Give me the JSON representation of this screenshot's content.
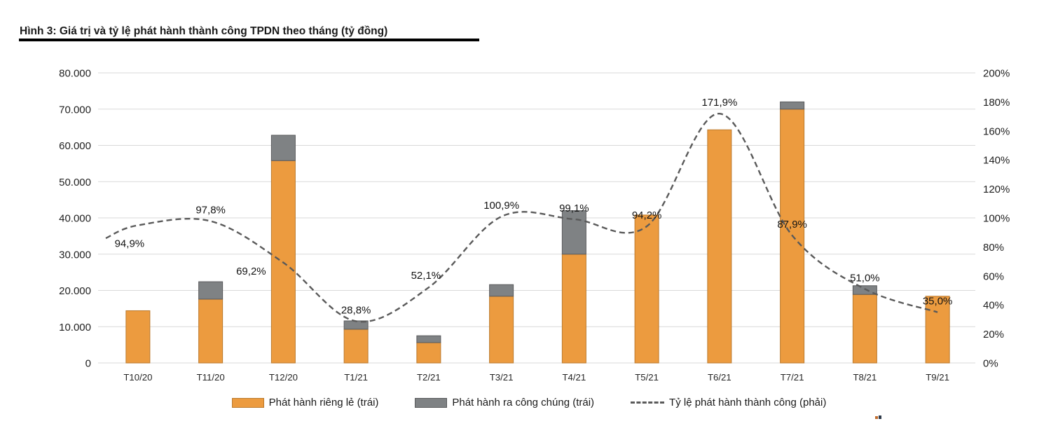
{
  "title": {
    "text": "Hình 3: Giá trị và tỷ lệ phát hành thành công TPDN theo tháng (tỷ đồng)"
  },
  "legend": {
    "items": [
      {
        "label": "Phát hành riêng lẻ (trái)",
        "swatch": "orange-bar"
      },
      {
        "label": "Phát hành ra công chúng (trái)",
        "swatch": "gray-bar"
      },
      {
        "label": "Tỷ lệ phát hành thành công (phải)",
        "swatch": "dashed-line"
      }
    ]
  },
  "colors": {
    "orange_fill": "#EC9B3F",
    "orange_border": "#BB7A2D",
    "gray_fill": "#7F8284",
    "gray_border": "#595A5C",
    "line": "#5A5A5A",
    "grid": "#D9D9D9",
    "axis_text": "#1F1F1F",
    "x_axis_text": "#262626",
    "point_label_text": "#141414",
    "title_rule": "#000000"
  },
  "chart_data": {
    "type": "combo",
    "title": "Hình 3: Giá trị và tỷ lệ phát hành thành công TPDN theo tháng (tỷ đồng)",
    "categories": [
      "T10/20",
      "T11/20",
      "T12/20",
      "T1/21",
      "T2/21",
      "T3/21",
      "T4/21",
      "T5/21",
      "T6/21",
      "T7/21",
      "T8/21",
      "T9/21"
    ],
    "series": [
      {
        "name": "Phát hành riêng lẻ (trái)",
        "type": "bar",
        "stacked": true,
        "axis": "left",
        "color_key": "orange",
        "values": [
          14400,
          17600,
          55800,
          9300,
          5600,
          18400,
          30000,
          40800,
          64300,
          70000,
          18900,
          18400
        ]
      },
      {
        "name": "Phát hành ra công chúng (trái)",
        "type": "bar",
        "stacked": true,
        "axis": "left",
        "color_key": "gray",
        "values": [
          0,
          4800,
          7000,
          2300,
          1900,
          3200,
          12000,
          0,
          0,
          2000,
          2400,
          0
        ]
      },
      {
        "name": "Tỷ lệ phát hành thành công (phải)",
        "type": "line",
        "style": "dashed-smooth",
        "axis": "right",
        "color_key": "line",
        "values": [
          94.9,
          97.8,
          69.2,
          28.8,
          52.1,
          100.9,
          99.1,
          94.2,
          171.9,
          87.9,
          51.0,
          35.0
        ],
        "point_labels": [
          "94,9%",
          "97,8%",
          "69,2%",
          "28,8%",
          "52,1%",
          "100,9%",
          "99,1%",
          "94,2%",
          "171,9%",
          "87,9%",
          "51,0%",
          "35,0%"
        ]
      }
    ],
    "left_axis": {
      "min": 0,
      "max": 80000,
      "tick_labels_top_to_bottom": [
        "80.000",
        "70.000",
        "60.000",
        "50.000",
        "40.000",
        "30.000",
        "20.000",
        "10.000",
        "0"
      ]
    },
    "right_axis": {
      "min": 0,
      "max": 200,
      "tick_labels_top_to_bottom": [
        "200%",
        "180%",
        "160%",
        "140%",
        "120%",
        "100%",
        "80%",
        "60%",
        "40%",
        "20%",
        "0%"
      ]
    },
    "grid": true,
    "legend_position": "bottom"
  }
}
